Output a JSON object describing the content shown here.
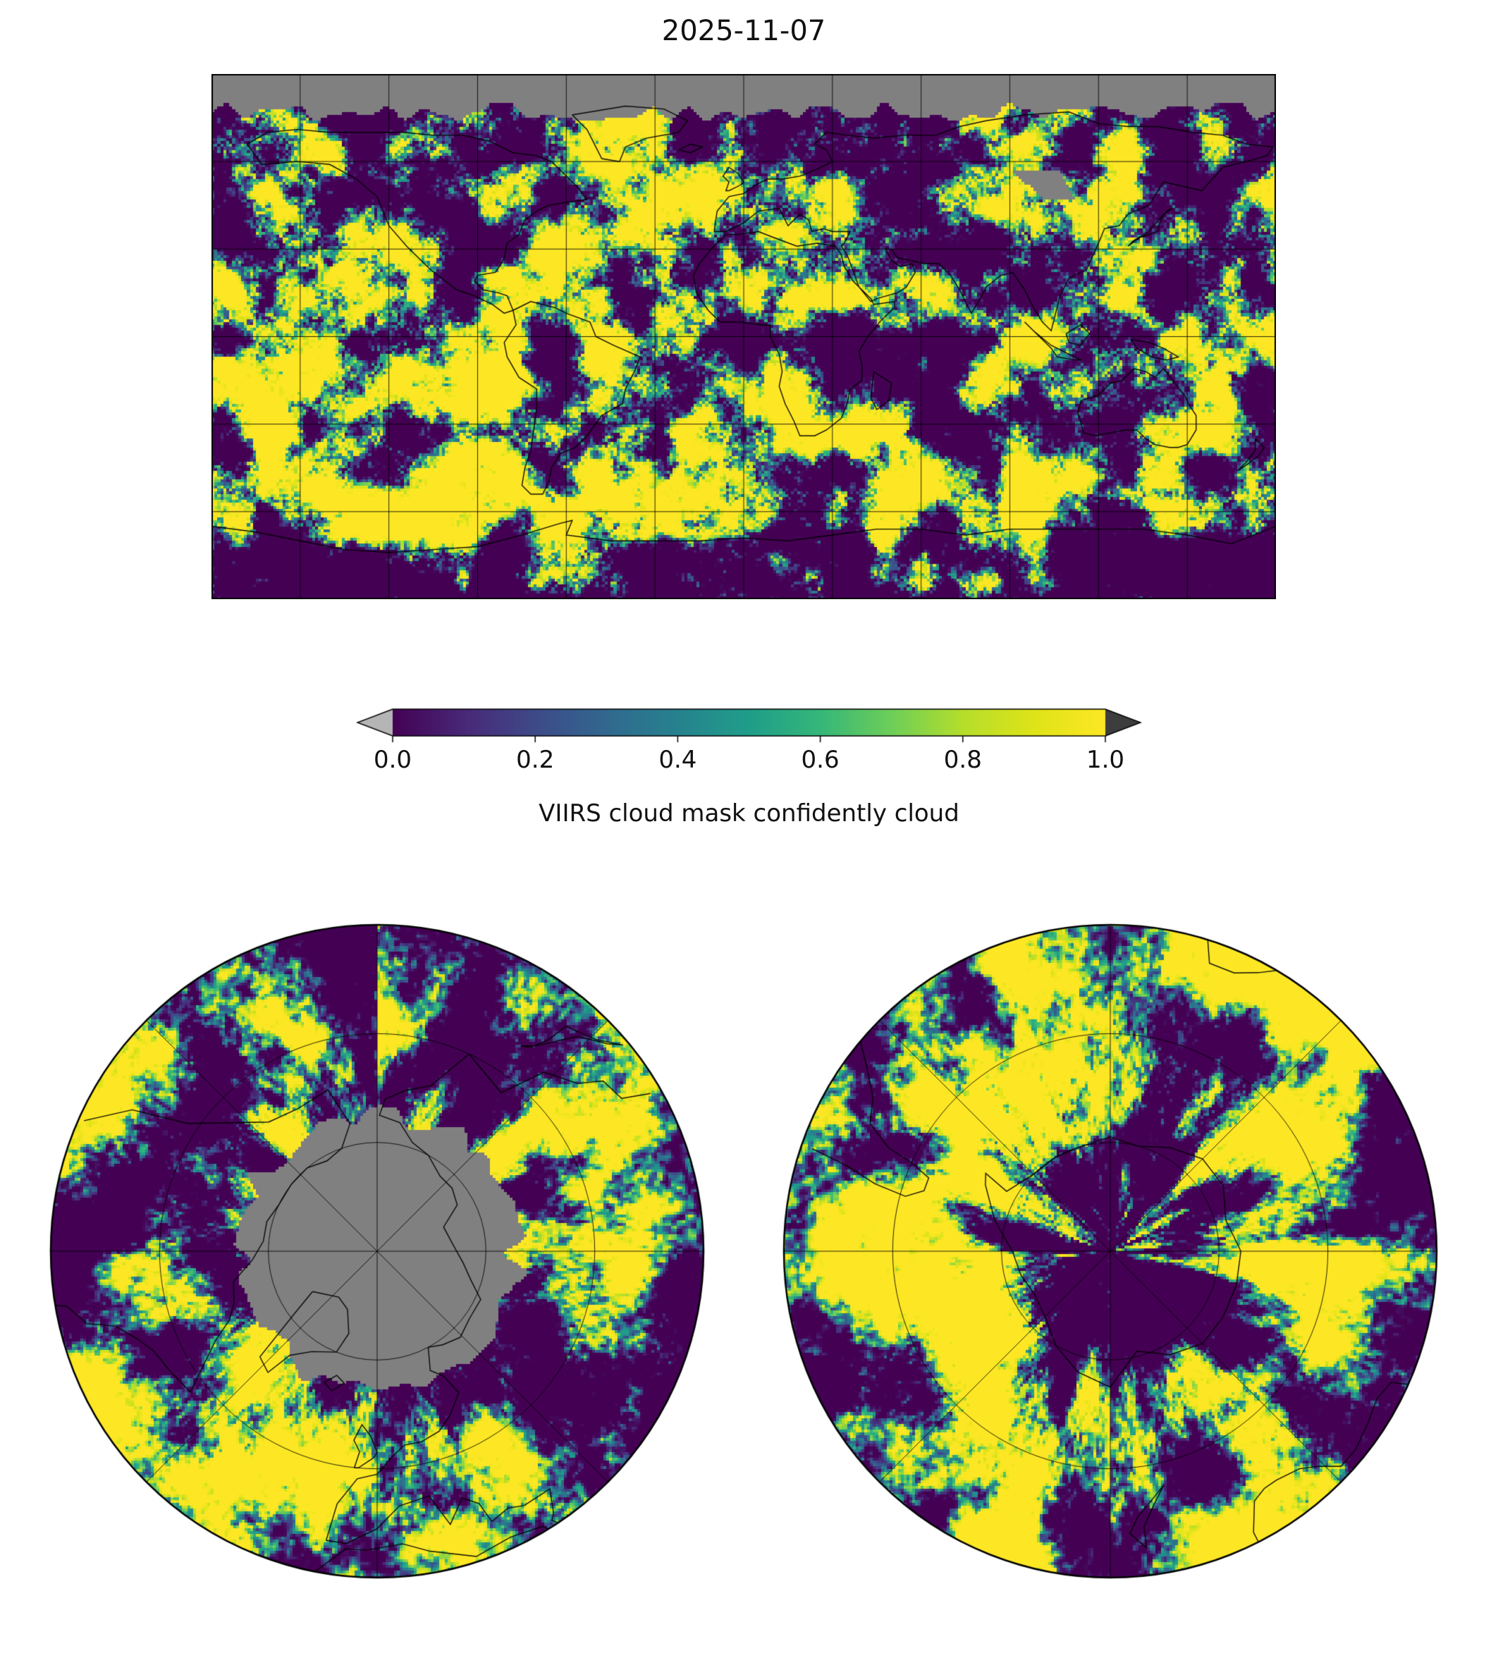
{
  "figure": {
    "background": "#ffffff"
  },
  "chart_data": {
    "type": "heatmap",
    "title": "2025-11-07",
    "variable": "VIIRS cloud mask confidently cloud",
    "colormap": "viridis",
    "value_range": [
      0.0,
      1.0
    ],
    "field_description": "Daily global gridded cloud-fraction field (~1 degree pixels). Values are mostly saturated near 0 (clear sky, dark purple) or 1 (cloudy, yellow) with thin green/teal transitions; gray denotes missing data (polar night band at high northern latitudes, a small swath gap near 90-112E / 47-57N, and a disc around the North Pole).",
    "colorbar": {
      "label": "VIIRS cloud mask confidently cloud",
      "orientation": "horizontal",
      "ticks": [
        0.0,
        0.2,
        0.4,
        0.6,
        0.8,
        1.0
      ],
      "range": [
        0.0,
        1.0
      ],
      "extend": "both",
      "under_color": "#b5b5b5",
      "over_color": "#3d3d3d"
    },
    "nodata_color": "#808080",
    "gridlines": true,
    "coastline_color": "#000000",
    "panels": [
      {
        "name": "global-map",
        "projection": "equirectangular",
        "lon_range": [
          -180,
          180
        ],
        "lat_range": [
          -90,
          90
        ],
        "gridline_spacing_deg": 30,
        "nodata_regions": [
          "polar night band north of ~77N",
          "swath gap near 90-112E, 47-57N"
        ]
      },
      {
        "name": "north-polar-map",
        "projection": "north-polar-stereographic",
        "lat_edge": 30,
        "parallels": [
          50,
          70
        ],
        "meridian_spacing_deg": 45,
        "nodata_regions": [
          "disc around North Pole (polar night)"
        ]
      },
      {
        "name": "south-polar-map",
        "projection": "south-polar-stereographic",
        "lat_edge": -30,
        "parallels": [
          -50,
          -70
        ],
        "meridian_spacing_deg": 45,
        "nodata_regions": []
      }
    ],
    "viridis_stops": [
      [
        0.0,
        "#440154"
      ],
      [
        0.1,
        "#482878"
      ],
      [
        0.2,
        "#3e4a89"
      ],
      [
        0.3,
        "#31688e"
      ],
      [
        0.4,
        "#26828e"
      ],
      [
        0.5,
        "#1f9e89"
      ],
      [
        0.6,
        "#35b779"
      ],
      [
        0.7,
        "#6ece58"
      ],
      [
        0.8,
        "#b5de2b"
      ],
      [
        0.9,
        "#dfe318"
      ],
      [
        1.0,
        "#fde725"
      ]
    ],
    "coastlines": [
      [
        [
          -168,
          66
        ],
        [
          -163,
          59
        ],
        [
          -151,
          60
        ],
        [
          -140,
          59
        ],
        [
          -131,
          54
        ],
        [
          -124,
          48
        ],
        [
          -120,
          38
        ],
        [
          -114,
          31
        ],
        [
          -106,
          23
        ],
        [
          -97,
          16
        ],
        [
          -91,
          14
        ],
        [
          -85,
          11
        ],
        [
          -81,
          8
        ],
        [
          -78,
          9
        ],
        [
          -80,
          14
        ],
        [
          -83,
          15
        ],
        [
          -88,
          16
        ],
        [
          -91,
          19
        ],
        [
          -90,
          21
        ],
        [
          -84,
          22
        ],
        [
          -82,
          25
        ],
        [
          -81,
          27
        ],
        [
          -80,
          32
        ],
        [
          -76,
          35
        ],
        [
          -74,
          40
        ],
        [
          -70,
          43
        ],
        [
          -66,
          45
        ],
        [
          -60,
          46
        ],
        [
          -53,
          47
        ],
        [
          -56,
          51
        ],
        [
          -61,
          56
        ],
        [
          -65,
          60
        ],
        [
          -70,
          62
        ],
        [
          -78,
          63
        ],
        [
          -86,
          67
        ],
        [
          -95,
          69
        ],
        [
          -105,
          69
        ],
        [
          -115,
          70
        ],
        [
          -128,
          70
        ],
        [
          -140,
          70
        ],
        [
          -151,
          71
        ],
        [
          -161,
          70
        ],
        [
          -168,
          66
        ]
      ],
      [
        [
          -78,
          9
        ],
        [
          -72,
          12
        ],
        [
          -64,
          10
        ],
        [
          -60,
          8
        ],
        [
          -52,
          5
        ],
        [
          -50,
          0
        ],
        [
          -44,
          -3
        ],
        [
          -35,
          -7
        ],
        [
          -37,
          -12
        ],
        [
          -40,
          -18
        ],
        [
          -41,
          -23
        ],
        [
          -48,
          -27
        ],
        [
          -53,
          -34
        ],
        [
          -57,
          -38
        ],
        [
          -62,
          -40
        ],
        [
          -65,
          -45
        ],
        [
          -66,
          -50
        ],
        [
          -68,
          -54
        ],
        [
          -72,
          -54
        ],
        [
          -75,
          -51
        ],
        [
          -74,
          -45
        ],
        [
          -72,
          -39
        ],
        [
          -71,
          -32
        ],
        [
          -70,
          -24
        ],
        [
          -70,
          -18
        ],
        [
          -76,
          -14
        ],
        [
          -80,
          -7
        ],
        [
          -81,
          -2
        ],
        [
          -79,
          1
        ],
        [
          -77,
          4
        ],
        [
          -78,
          9
        ]
      ],
      [
        [
          -58,
          76
        ],
        [
          -53,
          71
        ],
        [
          -48,
          61
        ],
        [
          -42,
          60
        ],
        [
          -40,
          65
        ],
        [
          -33,
          68
        ],
        [
          -22,
          70
        ],
        [
          -19,
          74
        ],
        [
          -27,
          78
        ],
        [
          -40,
          79
        ],
        [
          -58,
          76
        ]
      ],
      [
        [
          -6,
          35
        ],
        [
          -11,
          30
        ],
        [
          -15,
          25
        ],
        [
          -17,
          21
        ],
        [
          -16,
          15
        ],
        [
          -12,
          9
        ],
        [
          -8,
          5
        ],
        [
          -1,
          5
        ],
        [
          6,
          4
        ],
        [
          9,
          4
        ],
        [
          9,
          0
        ],
        [
          12,
          -6
        ],
        [
          13,
          -12
        ],
        [
          12,
          -17
        ],
        [
          14,
          -23
        ],
        [
          17,
          -29
        ],
        [
          19,
          -34
        ],
        [
          24,
          -34
        ],
        [
          28,
          -32
        ],
        [
          33,
          -28
        ],
        [
          35,
          -23
        ],
        [
          36,
          -18
        ],
        [
          40,
          -15
        ],
        [
          40,
          -10
        ],
        [
          39,
          -5
        ],
        [
          42,
          0
        ],
        [
          46,
          5
        ],
        [
          51,
          10
        ],
        [
          51,
          12
        ],
        [
          44,
          11
        ],
        [
          43,
          13
        ],
        [
          40,
          16
        ],
        [
          37,
          19
        ],
        [
          34,
          24
        ],
        [
          33,
          28
        ],
        [
          31,
          31
        ],
        [
          25,
          32
        ],
        [
          18,
          31
        ],
        [
          10,
          34
        ],
        [
          5,
          36
        ],
        [
          -2,
          35
        ],
        [
          -6,
          35
        ]
      ],
      [
        [
          -10,
          36
        ],
        [
          -9,
          43
        ],
        [
          -5,
          48
        ],
        [
          0,
          49
        ],
        [
          4,
          52
        ],
        [
          8,
          54
        ],
        [
          13,
          54
        ],
        [
          19,
          55
        ],
        [
          24,
          57
        ],
        [
          30,
          60
        ],
        [
          28,
          64
        ],
        [
          24,
          66
        ],
        [
          28,
          70
        ],
        [
          35,
          69
        ],
        [
          44,
          68
        ],
        [
          54,
          69
        ],
        [
          65,
          69
        ],
        [
          73,
          72
        ],
        [
          82,
          74
        ],
        [
          95,
          76
        ],
        [
          110,
          77
        ],
        [
          120,
          73
        ],
        [
          130,
          72
        ],
        [
          140,
          72
        ],
        [
          152,
          70
        ],
        [
          162,
          69
        ],
        [
          170,
          66
        ],
        [
          179,
          65
        ],
        [
          177,
          62
        ],
        [
          170,
          60
        ],
        [
          162,
          58
        ],
        [
          155,
          50
        ],
        [
          142,
          53
        ],
        [
          137,
          45
        ],
        [
          130,
          42
        ],
        [
          127,
          38
        ],
        [
          122,
          37
        ],
        [
          120,
          32
        ],
        [
          116,
          23
        ],
        [
          110,
          20
        ],
        [
          107,
          14
        ],
        [
          104,
          2
        ],
        [
          101,
          5
        ],
        [
          98,
          10
        ],
        [
          95,
          16
        ],
        [
          91,
          22
        ],
        [
          87,
          21
        ],
        [
          82,
          17
        ],
        [
          80,
          13
        ],
        [
          77,
          8
        ],
        [
          73,
          16
        ],
        [
          70,
          21
        ],
        [
          66,
          25
        ],
        [
          61,
          25
        ],
        [
          57,
          26
        ],
        [
          52,
          27
        ],
        [
          50,
          30
        ],
        [
          48,
          30
        ],
        [
          50,
          26
        ],
        [
          53,
          24
        ],
        [
          57,
          25
        ],
        [
          58,
          22
        ],
        [
          55,
          17
        ],
        [
          52,
          15
        ],
        [
          45,
          13
        ],
        [
          43,
          12
        ],
        [
          39,
          17
        ],
        [
          35,
          28
        ],
        [
          33,
          31
        ],
        [
          34,
          32
        ],
        [
          36,
          36
        ],
        [
          30,
          36
        ],
        [
          27,
          37
        ],
        [
          23,
          36
        ],
        [
          22,
          40
        ],
        [
          19,
          42
        ],
        [
          15,
          38
        ],
        [
          12,
          44
        ],
        [
          5,
          43
        ],
        [
          0,
          39
        ],
        [
          -6,
          36
        ],
        [
          -10,
          36
        ]
      ],
      [
        [
          95,
          5
        ],
        [
          100,
          0
        ],
        [
          104,
          -4
        ],
        [
          106,
          -7
        ],
        [
          112,
          -8
        ],
        [
          114,
          -8
        ],
        [
          110,
          -6
        ],
        [
          104,
          -3
        ],
        [
          98,
          2
        ],
        [
          95,
          5
        ]
      ],
      [
        [
          109,
          1
        ],
        [
          114,
          4
        ],
        [
          117,
          1
        ],
        [
          114,
          -3
        ],
        [
          110,
          -2
        ],
        [
          109,
          1
        ]
      ],
      [
        [
          131,
          -1
        ],
        [
          137,
          -2
        ],
        [
          142,
          -4
        ],
        [
          147,
          -7
        ],
        [
          143,
          -8
        ],
        [
          138,
          -7
        ],
        [
          133,
          -4
        ],
        [
          131,
          -1
        ]
      ],
      [
        [
          114,
          -22
        ],
        [
          113,
          -26
        ],
        [
          115,
          -33
        ],
        [
          119,
          -34
        ],
        [
          124,
          -33
        ],
        [
          129,
          -32
        ],
        [
          133,
          -32
        ],
        [
          136,
          -35
        ],
        [
          139,
          -37
        ],
        [
          144,
          -38
        ],
        [
          147,
          -38
        ],
        [
          150,
          -37
        ],
        [
          153,
          -32
        ],
        [
          153,
          -27
        ],
        [
          151,
          -24
        ],
        [
          149,
          -20
        ],
        [
          145,
          -15
        ],
        [
          142,
          -11
        ],
        [
          139,
          -14
        ],
        [
          136,
          -12
        ],
        [
          132,
          -11
        ],
        [
          128,
          -15
        ],
        [
          124,
          -16
        ],
        [
          120,
          -20
        ],
        [
          114,
          -22
        ]
      ],
      [
        [
          130,
          31
        ],
        [
          134,
          34
        ],
        [
          140,
          36
        ],
        [
          141,
          40
        ],
        [
          143,
          43
        ],
        [
          145,
          44
        ],
        [
          142,
          42
        ],
        [
          137,
          36
        ],
        [
          132,
          33
        ],
        [
          130,
          31
        ]
      ],
      [
        [
          -5,
          50
        ],
        [
          -1,
          52
        ],
        [
          0,
          53
        ],
        [
          -2,
          56
        ],
        [
          -5,
          58
        ],
        [
          -7,
          55
        ],
        [
          -5,
          53
        ],
        [
          -6,
          50
        ],
        [
          -5,
          50
        ]
      ],
      [
        [
          -22,
          64
        ],
        [
          -18,
          66
        ],
        [
          -14,
          65
        ],
        [
          -18,
          63
        ],
        [
          -22,
          64
        ]
      ],
      [
        [
          44,
          -12
        ],
        [
          50,
          -16
        ],
        [
          49,
          -22
        ],
        [
          45,
          -25
        ],
        [
          43,
          -21
        ],
        [
          44,
          -12
        ]
      ],
      [
        [
          173,
          -35
        ],
        [
          176,
          -38
        ],
        [
          174,
          -41
        ],
        [
          170,
          -44
        ],
        [
          167,
          -46
        ],
        [
          170,
          -43
        ],
        [
          173,
          -39
        ],
        [
          173,
          -35
        ]
      ],
      [
        [
          -180,
          -65
        ],
        [
          -165,
          -67
        ],
        [
          -150,
          -70
        ],
        [
          -135,
          -73
        ],
        [
          -120,
          -74
        ],
        [
          -105,
          -73
        ],
        [
          -90,
          -72
        ],
        [
          -75,
          -68
        ],
        [
          -62,
          -64
        ],
        [
          -58,
          -63
        ],
        [
          -60,
          -68
        ],
        [
          -45,
          -70
        ],
        [
          -30,
          -70
        ],
        [
          -15,
          -70
        ],
        [
          0,
          -69
        ],
        [
          15,
          -70
        ],
        [
          30,
          -68
        ],
        [
          45,
          -66
        ],
        [
          60,
          -66
        ],
        [
          75,
          -68
        ],
        [
          90,
          -66
        ],
        [
          105,
          -66
        ],
        [
          120,
          -66
        ],
        [
          135,
          -66
        ],
        [
          150,
          -68
        ],
        [
          165,
          -71
        ],
        [
          180,
          -65
        ]
      ]
    ]
  }
}
